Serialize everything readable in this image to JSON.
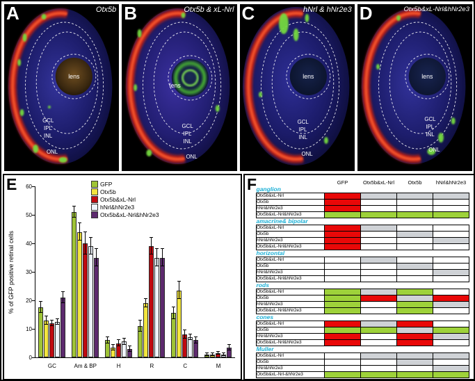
{
  "micrographs": [
    {
      "letter": "A",
      "title": "Otx5b",
      "lens_label": "lens",
      "layers": [
        "GCL",
        "IPL",
        "INL",
        "ONL"
      ]
    },
    {
      "letter": "B",
      "title": "Otx5b & xL-Nrl",
      "lens_label": "lens",
      "layers": [
        "GCL",
        "IPL",
        "INL",
        "ONL"
      ]
    },
    {
      "letter": "C",
      "title": "hNrl & hNr2e3",
      "lens_label": "lens",
      "layers": [
        "GCL",
        "IPL",
        "INL",
        "ONL"
      ]
    },
    {
      "letter": "D",
      "title": "Otx5b&xL-Nrl&hNr2e3",
      "lens_label": "lens",
      "layers": [
        "GCL",
        "IPL",
        "INL",
        "ONL"
      ]
    }
  ],
  "panels": {
    "e_letter": "E",
    "f_letter": "F"
  },
  "chart_data": {
    "type": "bar",
    "categories": [
      "GC",
      "Am & BP",
      "H",
      "R",
      "C",
      "M"
    ],
    "series": [
      {
        "name": "GFP",
        "color": "#9fc436",
        "values": [
          17.5,
          51,
          6,
          11,
          15.5,
          1
        ],
        "errors": [
          2,
          2,
          1,
          2,
          2,
          0.5
        ]
      },
      {
        "name": "Otx5b",
        "color": "#f2e53e",
        "values": [
          13,
          44,
          3.5,
          19,
          23.5,
          1
        ],
        "errors": [
          1.5,
          3,
          1,
          1.5,
          3,
          0.5
        ]
      },
      {
        "name": "Otx5b&xL-Nrl",
        "color": "#bf0a10",
        "values": [
          12,
          40,
          5,
          39,
          8,
          1.5
        ],
        "errors": [
          1,
          4,
          1,
          3,
          1.5,
          0.5
        ]
      },
      {
        "name": "hNrl&hNr2e3",
        "color": "#eef3fb",
        "values": [
          12.5,
          39,
          5.5,
          35,
          7,
          1
        ],
        "errors": [
          1,
          3,
          1,
          3,
          1,
          0.5
        ]
      },
      {
        "name": "Otx5b&xL-Nrl&hNr2e3",
        "color": "#5d2a6e",
        "values": [
          21,
          35,
          3,
          35,
          6,
          3.5
        ],
        "errors": [
          2,
          3,
          1,
          3,
          1,
          1
        ]
      }
    ],
    "xlabel": "",
    "ylabel": "% of GFP positive retinal cells",
    "ylim": [
      0,
      60
    ],
    "yticks": [
      0,
      10,
      20,
      30,
      40,
      50,
      60
    ],
    "legend_position": "top-center",
    "grid": false
  },
  "table": {
    "columns": [
      "GFP",
      "Otx5b&xL-Nrl",
      "Otx5b",
      "hNrl&hNr2e3"
    ],
    "cell_colors": {
      "red": "#e90808",
      "green": "#9ed23a",
      "gray": "#cfd2d6",
      "white": "#ffffff"
    },
    "groups": [
      {
        "name": "ganglion",
        "rows": [
          {
            "label": "Otx5b&xL-Nrl",
            "cells": [
              "red",
              "gray",
              "gray",
              "gray"
            ]
          },
          {
            "label": "Otx5b",
            "cells": [
              "red",
              "white",
              "white",
              "white"
            ]
          },
          {
            "label": "hNrl&hNr2e3",
            "cells": [
              "red",
              "white",
              "white",
              "white"
            ]
          },
          {
            "label": "Otx5b&xL-Nrl&hNr2e3",
            "cells": [
              "green",
              "green",
              "green",
              "green"
            ]
          }
        ]
      },
      {
        "name": "amacrine& bipolar",
        "rows": [
          {
            "label": "Otx5b&xL-Nrl",
            "cells": [
              "red",
              "gray",
              "white",
              "white"
            ]
          },
          {
            "label": "Otx5b",
            "cells": [
              "red",
              "white",
              "gray",
              "white"
            ]
          },
          {
            "label": "hNrl&hNr2e3",
            "cells": [
              "red",
              "white",
              "white",
              "gray"
            ]
          },
          {
            "label": "Otx5b&xL-Nrl&hNr2e3",
            "cells": [
              "red",
              "white",
              "white",
              "white"
            ]
          }
        ]
      },
      {
        "name": "horizontal",
        "rows": [
          {
            "label": "Otx5b&xL-Nrl",
            "cells": [
              "white",
              "gray",
              "white",
              "white"
            ]
          },
          {
            "label": "Otx5b",
            "cells": [
              "white",
              "white",
              "gray",
              "white"
            ]
          },
          {
            "label": "hNrl&hNr2e3",
            "cells": [
              "white",
              "white",
              "white",
              "gray"
            ]
          },
          {
            "label": "Otx5b&xL-Nrl&hNr2e3",
            "cells": [
              "white",
              "white",
              "white",
              "white"
            ]
          }
        ]
      },
      {
        "name": "rods",
        "rows": [
          {
            "label": "Otx5b&xL-Nrl",
            "cells": [
              "green",
              "gray",
              "green",
              "white"
            ]
          },
          {
            "label": "Otx5b",
            "cells": [
              "green",
              "red",
              "gray",
              "red"
            ]
          },
          {
            "label": "hNrl&hNr2e3",
            "cells": [
              "green",
              "white",
              "green",
              "gray"
            ]
          },
          {
            "label": "Otx5b&xL-Nrl&hNr2e3",
            "cells": [
              "green",
              "white",
              "green",
              "white"
            ]
          }
        ]
      },
      {
        "name": "cones",
        "rows": [
          {
            "label": "Otx5b&xL-Nrl",
            "cells": [
              "red",
              "gray",
              "red",
              "white"
            ]
          },
          {
            "label": "Otx5b",
            "cells": [
              "green",
              "green",
              "gray",
              "green"
            ]
          },
          {
            "label": "hNrl&hNr2e3",
            "cells": [
              "red",
              "white",
              "red",
              "gray"
            ]
          },
          {
            "label": "Otx5b&xL-Nrl&hNr2e3",
            "cells": [
              "red",
              "white",
              "red",
              "white"
            ]
          }
        ]
      },
      {
        "name": "Muller",
        "rows": [
          {
            "label": "Otx5b&xL-Nrl",
            "cells": [
              "white",
              "gray",
              "gray",
              "gray"
            ]
          },
          {
            "label": "Otx5b",
            "cells": [
              "white",
              "white",
              "gray",
              "white"
            ]
          },
          {
            "label": "hNrl&hNr2e3",
            "cells": [
              "white",
              "white",
              "white",
              "gray"
            ]
          },
          {
            "label": "Otx5b&xL-Nrl-&hNr2e3",
            "cells": [
              "green",
              "green",
              "green",
              "green"
            ]
          }
        ]
      }
    ]
  }
}
